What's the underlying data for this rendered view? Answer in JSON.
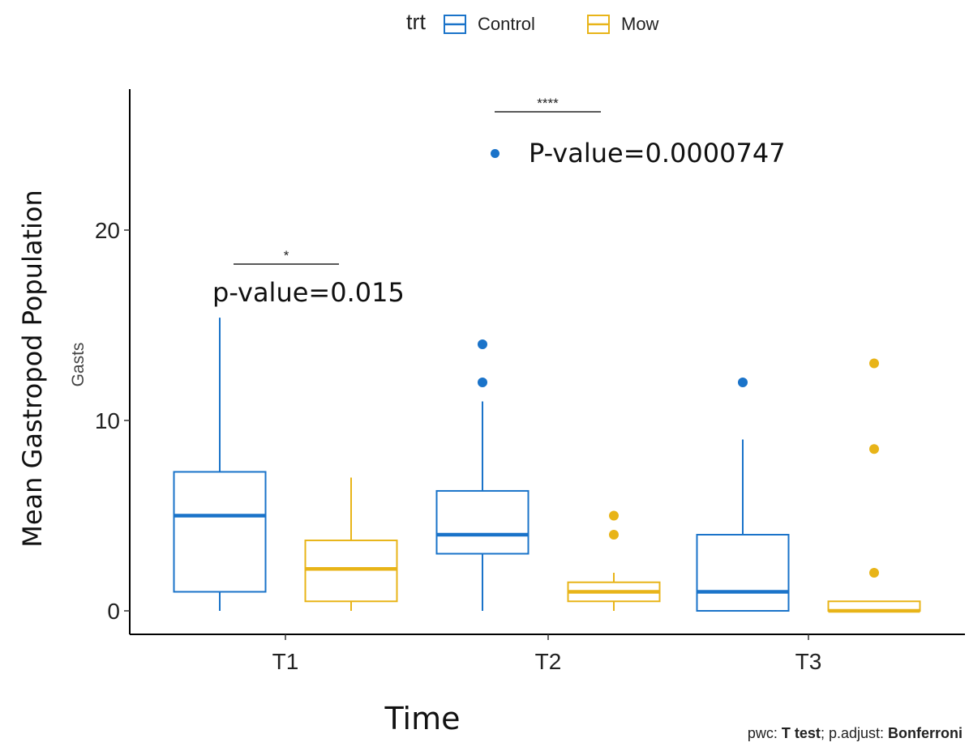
{
  "legend": {
    "title": "trt",
    "items": [
      {
        "label": "Control",
        "color": "#1a73c9"
      },
      {
        "label": "Mow",
        "color": "#e8b418"
      }
    ]
  },
  "labels": {
    "y_outer": "Mean Gastropod Population",
    "y_inner": "Gasts",
    "x": "Time",
    "caption_prefix": "pwc: ",
    "caption_test": "T test",
    "caption_mid": "; p.adjust: ",
    "caption_method": "Bonferroni"
  },
  "annotations": [
    {
      "group": "T1",
      "stars": "*",
      "text": "p-value=0.015"
    },
    {
      "group": "T2",
      "stars": "****",
      "text": "P-value=0.0000747"
    }
  ],
  "chart_data": {
    "type": "box",
    "categories": [
      "T1",
      "T2",
      "T3"
    ],
    "ylim": [
      -1,
      27
    ],
    "y_ticks": [
      0,
      10,
      20
    ],
    "grid": false,
    "legend_position": "top",
    "series": [
      {
        "name": "Control",
        "color": "#1a73c9",
        "boxes": [
          {
            "category": "T1",
            "min": 0,
            "q1": 1,
            "median": 5,
            "q3": 7.3,
            "max": 15.4,
            "outliers": []
          },
          {
            "category": "T2",
            "min": 0,
            "q1": 3,
            "median": 4,
            "q3": 6.3,
            "max": 11,
            "outliers": [
              12,
              14
            ]
          },
          {
            "category": "T3",
            "min": 0,
            "q1": 0,
            "median": 1,
            "q3": 4,
            "max": 9,
            "outliers": [
              12
            ]
          }
        ]
      },
      {
        "name": "Mow",
        "color": "#e8b418",
        "boxes": [
          {
            "category": "T1",
            "min": 0,
            "q1": 0.5,
            "median": 2.2,
            "q3": 3.7,
            "max": 7,
            "outliers": []
          },
          {
            "category": "T2",
            "min": 0,
            "q1": 0.5,
            "median": 1,
            "q3": 1.5,
            "max": 2,
            "outliers": [
              4,
              5
            ]
          },
          {
            "category": "T3",
            "min": 0,
            "q1": 0,
            "median": 0,
            "q3": 0.5,
            "max": 0.5,
            "outliers": [
              2,
              8.5,
              13
            ]
          }
        ]
      }
    ]
  }
}
